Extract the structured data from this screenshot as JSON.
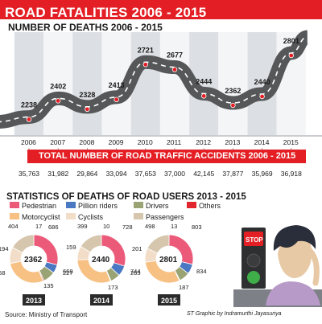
{
  "header": {
    "title": "ROAD FATALITIES 2006 - 2015",
    "subtitle": "NUMBER OF DEATHS 2006 - 2015",
    "accident_banner": "TOTAL NUMBER OF ROAD TRAFFIC ACCIDENTS 2006 - 2015",
    "stats_title": "STATISTICS OF DEATHS OF ROAD USERS 2013 - 2015"
  },
  "chart_data": [
    {
      "type": "line",
      "title": "NUMBER OF DEATHS 2006 - 2015",
      "x": [
        "2006",
        "2007",
        "2008",
        "2009",
        "2010",
        "2011",
        "2012",
        "2013",
        "2014",
        "2015"
      ],
      "deaths": [
        2238,
        2402,
        2328,
        2413,
        2721,
        2677,
        2444,
        2362,
        2440,
        2801
      ],
      "accidents": [
        35763,
        31982,
        29864,
        33094,
        37653,
        37000,
        42145,
        37877,
        35969,
        36918
      ],
      "accidents_label": "TOTAL NUMBER OF ROAD TRAFFIC ACCIDENTS 2006 - 2015",
      "ylim": [
        2150,
        2900
      ],
      "grid": "alternating vertical bands"
    },
    {
      "type": "pie",
      "title": "STATISTICS OF DEATHS OF ROAD USERS 2013 - 2015",
      "legend": [
        {
          "name": "Pedestrian",
          "color": "#ec5a7a"
        },
        {
          "name": "Pillion riders",
          "color": "#4a78c2"
        },
        {
          "name": "Drivers",
          "color": "#9aa373"
        },
        {
          "name": "Others",
          "color": "#e0262c"
        },
        {
          "name": "Motorcyclist",
          "color": "#f8c184"
        },
        {
          "name": "Cyclists",
          "color": "#f2dec8"
        },
        {
          "name": "Passengers",
          "color": "#d6c6ad"
        }
      ],
      "donuts": [
        {
          "year": "2013",
          "total": "2362",
          "values": [
            686,
            135,
            194,
            17,
            668,
            258,
            404
          ]
        },
        {
          "year": "2014",
          "total": "2440",
          "values": [
            728,
            173,
            159,
            10,
            744,
            227,
            399
          ]
        },
        {
          "year": "2015",
          "total": "2801",
          "values": [
            803,
            187,
            201,
            13,
            834,
            265,
            498
          ]
        }
      ]
    }
  ],
  "footer": {
    "source": "Source: Ministry of Transport",
    "credit": "ST Graphic by Indramurthi Jayasuriya"
  },
  "illustration": {
    "stop_sign": "STOP"
  },
  "colors": {
    "title_band": "#e31e24",
    "road": "#555759",
    "band_dark": "#dcdfe3",
    "band_light": "#f4f5f7",
    "accent": "#e31e24"
  }
}
